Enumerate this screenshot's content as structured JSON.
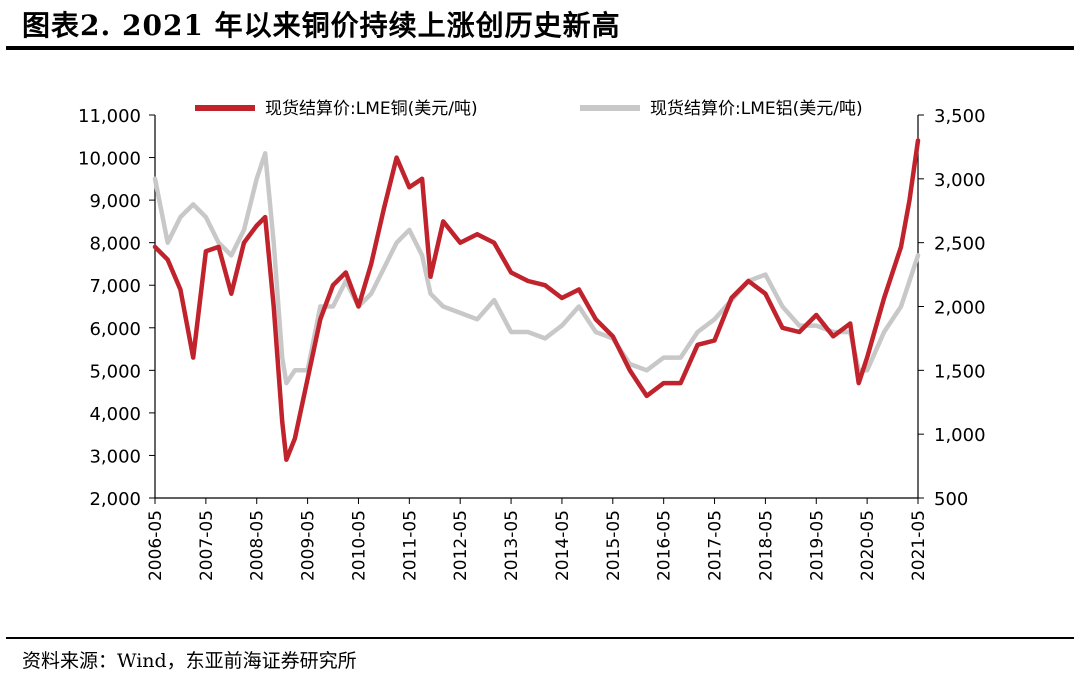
{
  "figure_title": "图表2.   2021 年以来铜价持续上涨创历史新高",
  "source_note": "资料来源：Wind，东亚前海证券研究所",
  "chart_data": {
    "type": "line",
    "title": "",
    "x": [
      "2006-05",
      "2006-08",
      "2006-11",
      "2007-02",
      "2007-05",
      "2007-08",
      "2007-11",
      "2008-02",
      "2008-05",
      "2008-07",
      "2008-09",
      "2008-11",
      "2008-12",
      "2009-02",
      "2009-05",
      "2009-08",
      "2009-11",
      "2010-02",
      "2010-05",
      "2010-08",
      "2010-11",
      "2011-02",
      "2011-05",
      "2011-08",
      "2011-10",
      "2012-01",
      "2012-05",
      "2012-09",
      "2013-01",
      "2013-05",
      "2013-09",
      "2014-01",
      "2014-05",
      "2014-09",
      "2015-01",
      "2015-05",
      "2015-09",
      "2016-01",
      "2016-05",
      "2016-09",
      "2017-01",
      "2017-05",
      "2017-09",
      "2018-01",
      "2018-05",
      "2018-09",
      "2019-01",
      "2019-05",
      "2019-09",
      "2020-01",
      "2020-03",
      "2020-05",
      "2020-09",
      "2021-01",
      "2021-03",
      "2021-05"
    ],
    "x_tick_labels": [
      "2006-05",
      "2007-05",
      "2008-05",
      "2009-05",
      "2010-05",
      "2011-05",
      "2012-05",
      "2013-05",
      "2014-05",
      "2015-05",
      "2016-05",
      "2017-05",
      "2018-05",
      "2019-05",
      "2020-05",
      "2021-05"
    ],
    "series": [
      {
        "name": "现货结算价:LME铜(美元/吨)",
        "axis": "left",
        "color": "#c0232c",
        "values": [
          7900,
          7600,
          6900,
          5300,
          7800,
          7900,
          6800,
          8000,
          8400,
          8600,
          6500,
          3800,
          2900,
          3400,
          4800,
          6200,
          7000,
          7300,
          6500,
          7500,
          8800,
          10000,
          9300,
          9500,
          7200,
          8500,
          8000,
          8200,
          8000,
          7300,
          7100,
          7000,
          6700,
          6900,
          6200,
          5800,
          5000,
          4400,
          4700,
          4700,
          5600,
          5700,
          6700,
          7100,
          6800,
          6000,
          5900,
          6300,
          5800,
          6100,
          4700,
          5300,
          6700,
          7900,
          9000,
          10400
        ]
      },
      {
        "name": "现货结算价:LME铝(美元/吨)",
        "axis": "right",
        "color": "#c8c8c8",
        "values": [
          3000,
          2500,
          2700,
          2800,
          2700,
          2500,
          2400,
          2600,
          3000,
          3200,
          2500,
          1600,
          1400,
          1500,
          1500,
          2000,
          2000,
          2200,
          2000,
          2100,
          2300,
          2500,
          2600,
          2400,
          2100,
          2000,
          1950,
          1900,
          2050,
          1800,
          1800,
          1750,
          1850,
          2000,
          1800,
          1750,
          1550,
          1500,
          1600,
          1600,
          1800,
          1900,
          2050,
          2200,
          2250,
          2000,
          1850,
          1850,
          1800,
          1800,
          1500,
          1500,
          1800,
          2000,
          2200,
          2400
        ]
      }
    ],
    "y_left": {
      "ylim": [
        2000,
        11000
      ],
      "ticks": [
        "2,000",
        "3,000",
        "4,000",
        "5,000",
        "6,000",
        "7,000",
        "8,000",
        "9,000",
        "10,000",
        "11,000"
      ]
    },
    "y_right": {
      "ylim": [
        500,
        3500
      ],
      "ticks": [
        "500",
        "1,000",
        "1,500",
        "2,000",
        "2,500",
        "3,000",
        "3,500"
      ]
    },
    "grid": false,
    "legend": "top"
  }
}
